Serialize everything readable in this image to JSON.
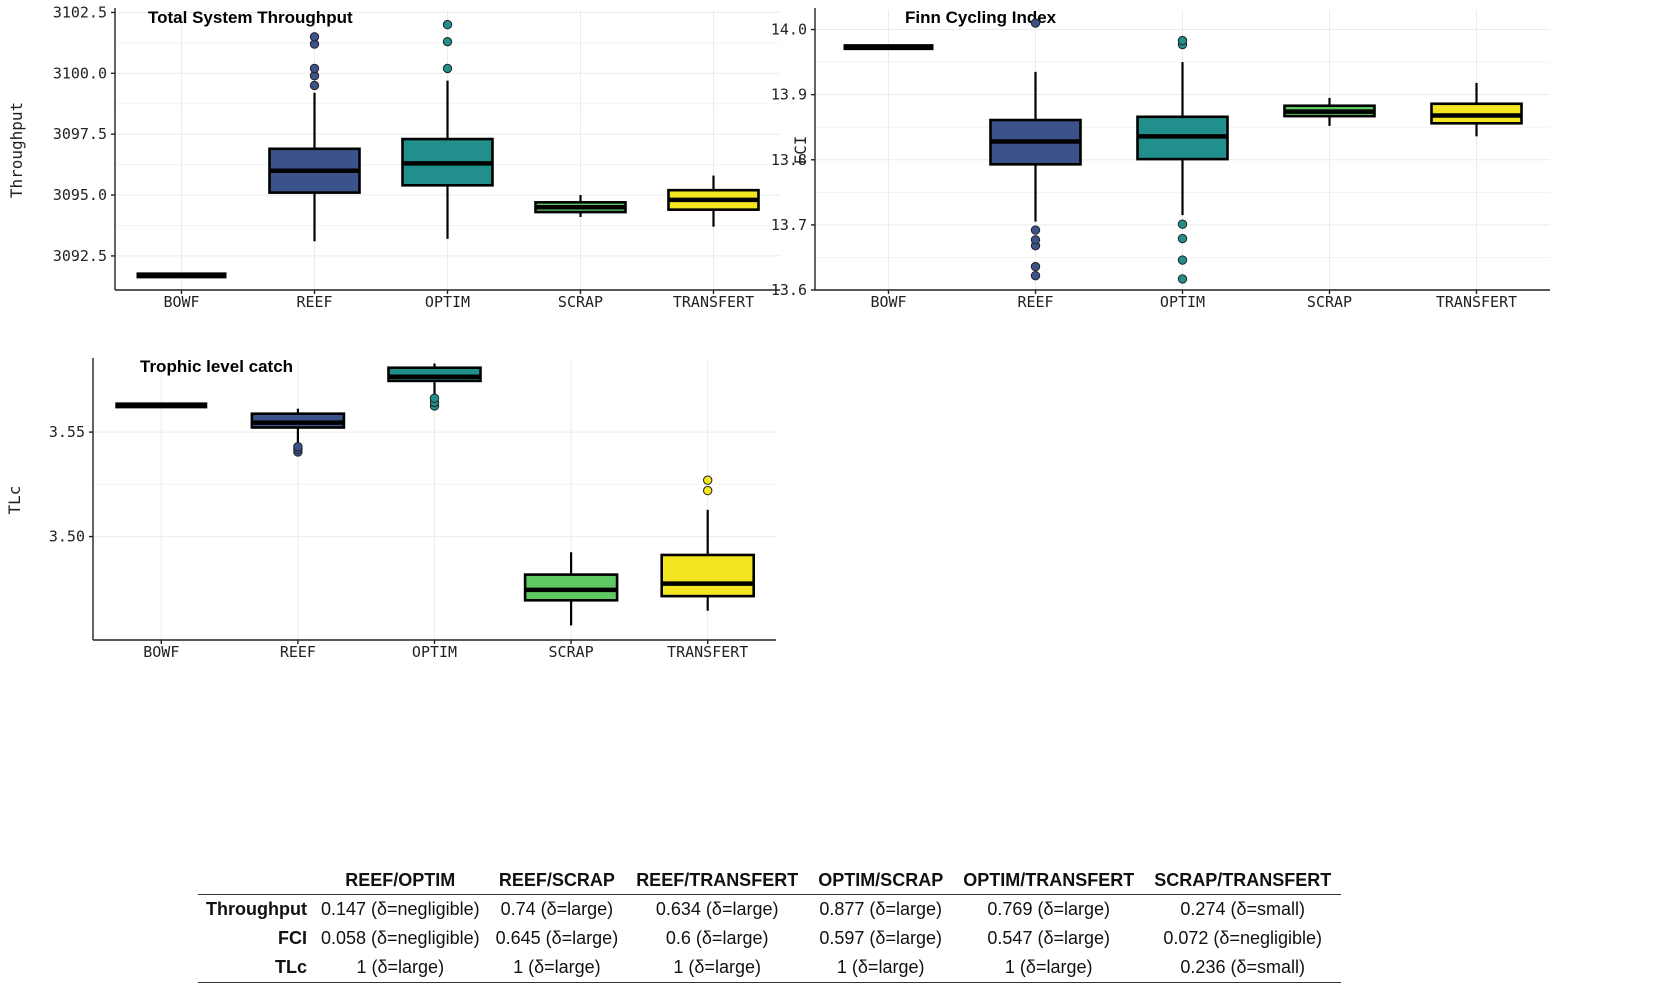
{
  "colors": {
    "BOWF": "#111111",
    "REEF": "#3b528b",
    "OPTIM": "#21908c",
    "SCRAP": "#5ec962",
    "TRANSFERT": "#f3e51f"
  },
  "chart_data": [
    {
      "type": "boxplot",
      "title": "Total System Throughput",
      "xlabel": "",
      "ylabel": "Throughput",
      "categories": [
        "BOWF",
        "REEF",
        "OPTIM",
        "SCRAP",
        "TRANSFERT"
      ],
      "yticks": [
        "3092.5",
        "3095.0",
        "3097.5",
        "3100.0",
        "3102.5"
      ],
      "ylim": [
        3091.1,
        3102.6
      ],
      "boxes": [
        {
          "category": "BOWF",
          "whisker_low": 3091.7,
          "q1": 3091.7,
          "median": 3091.7,
          "q3": 3091.7,
          "whisker_high": 3091.7,
          "outliers": []
        },
        {
          "category": "REEF",
          "whisker_low": 3093.1,
          "q1": 3095.1,
          "median": 3096.0,
          "q3": 3096.9,
          "whisker_high": 3099.2,
          "outliers": [
            3099.5,
            3099.9,
            3100.2,
            3101.2,
            3101.5
          ]
        },
        {
          "category": "OPTIM",
          "whisker_low": 3093.2,
          "q1": 3095.4,
          "median": 3096.3,
          "q3": 3097.3,
          "whisker_high": 3099.7,
          "outliers": [
            3100.2,
            3101.3,
            3102.0
          ]
        },
        {
          "category": "SCRAP",
          "whisker_low": 3094.1,
          "q1": 3094.3,
          "median": 3094.5,
          "q3": 3094.7,
          "whisker_high": 3095.0,
          "outliers": []
        },
        {
          "category": "TRANSFERT",
          "whisker_low": 3093.7,
          "q1": 3094.4,
          "median": 3094.8,
          "q3": 3095.2,
          "whisker_high": 3095.8,
          "outliers": []
        }
      ]
    },
    {
      "type": "boxplot",
      "title": "Finn Cycling Index",
      "xlabel": "",
      "ylabel": "FCI",
      "categories": [
        "BOWF",
        "REEF",
        "OPTIM",
        "SCRAP",
        "TRANSFERT"
      ],
      "yticks": [
        "13.6",
        "13.7",
        "13.8",
        "13.9",
        "14.0"
      ],
      "ylim": [
        13.6,
        14.03
      ],
      "boxes": [
        {
          "category": "BOWF",
          "whisker_low": 13.973,
          "q1": 13.973,
          "median": 13.973,
          "q3": 13.973,
          "whisker_high": 13.973,
          "outliers": []
        },
        {
          "category": "REEF",
          "whisker_low": 13.705,
          "q1": 13.793,
          "median": 13.828,
          "q3": 13.861,
          "whisker_high": 13.935,
          "outliers": [
            13.622,
            13.636,
            13.668,
            13.677,
            13.692,
            14.01
          ]
        },
        {
          "category": "OPTIM",
          "whisker_low": 13.715,
          "q1": 13.801,
          "median": 13.836,
          "q3": 13.866,
          "whisker_high": 13.95,
          "outliers": [
            13.617,
            13.646,
            13.679,
            13.701,
            13.977,
            13.983
          ]
        },
        {
          "category": "SCRAP",
          "whisker_low": 13.852,
          "q1": 13.867,
          "median": 13.874,
          "q3": 13.883,
          "whisker_high": 13.895,
          "outliers": []
        },
        {
          "category": "TRANSFERT",
          "whisker_low": 13.836,
          "q1": 13.856,
          "median": 13.868,
          "q3": 13.886,
          "whisker_high": 13.918,
          "outliers": []
        }
      ]
    },
    {
      "type": "boxplot",
      "title": "Trophic level catch",
      "xlabel": "",
      "ylabel": "TLc",
      "categories": [
        "BOWF",
        "REEF",
        "OPTIM",
        "SCRAP",
        "TRANSFERT"
      ],
      "yticks": [
        "3.50",
        "3.55"
      ],
      "ylim": [
        3.4505,
        3.5845
      ],
      "boxes": [
        {
          "category": "BOWF",
          "whisker_low": 3.5628,
          "q1": 3.5628,
          "median": 3.5628,
          "q3": 3.5628,
          "whisker_high": 3.5628,
          "outliers": []
        },
        {
          "category": "REEF",
          "whisker_low": 3.5445,
          "q1": 3.5522,
          "median": 3.5545,
          "q3": 3.5588,
          "whisker_high": 3.5612,
          "outliers": [
            3.5405,
            3.5418,
            3.543
          ]
        },
        {
          "category": "OPTIM",
          "whisker_low": 3.568,
          "q1": 3.5745,
          "median": 3.5765,
          "q3": 3.5808,
          "whisker_high": 3.5828,
          "outliers": [
            3.5625,
            3.5642,
            3.5662
          ]
        },
        {
          "category": "SCRAP",
          "whisker_low": 3.4575,
          "q1": 3.4695,
          "median": 3.4745,
          "q3": 3.4818,
          "whisker_high": 3.4925,
          "outliers": []
        },
        {
          "category": "TRANSFERT",
          "whisker_low": 3.4645,
          "q1": 3.4715,
          "median": 3.4775,
          "q3": 3.4912,
          "whisker_high": 3.5128,
          "outliers": [
            3.522,
            3.527
          ]
        }
      ]
    },
    {
      "type": "table",
      "columns": [
        "REEF/OPTIM",
        "REEF/SCRAP",
        "REEF/TRANSFERT",
        "OPTIM/SCRAP",
        "OPTIM/TRANSFERT",
        "SCRAP/TRANSFERT"
      ],
      "rows": [
        {
          "label": "Throughput",
          "cells": [
            "0.147 (δ=negligible)",
            "0.74 (δ=large)",
            "0.634 (δ=large)",
            "0.877 (δ=large)",
            "0.769 (δ=large)",
            "0.274 (δ=small)"
          ]
        },
        {
          "label": "FCI",
          "cells": [
            "0.058 (δ=negligible)",
            "0.645 (δ=large)",
            "0.6 (δ=large)",
            "0.597 (δ=large)",
            "0.547 (δ=large)",
            "0.072 (δ=negligible)"
          ]
        },
        {
          "label": "TLc",
          "cells": [
            "1 (δ=large)",
            "1 (δ=large)",
            "1 (δ=large)",
            "1 (δ=large)",
            "1 (δ=large)",
            "0.236 (δ=small)"
          ]
        }
      ]
    }
  ]
}
